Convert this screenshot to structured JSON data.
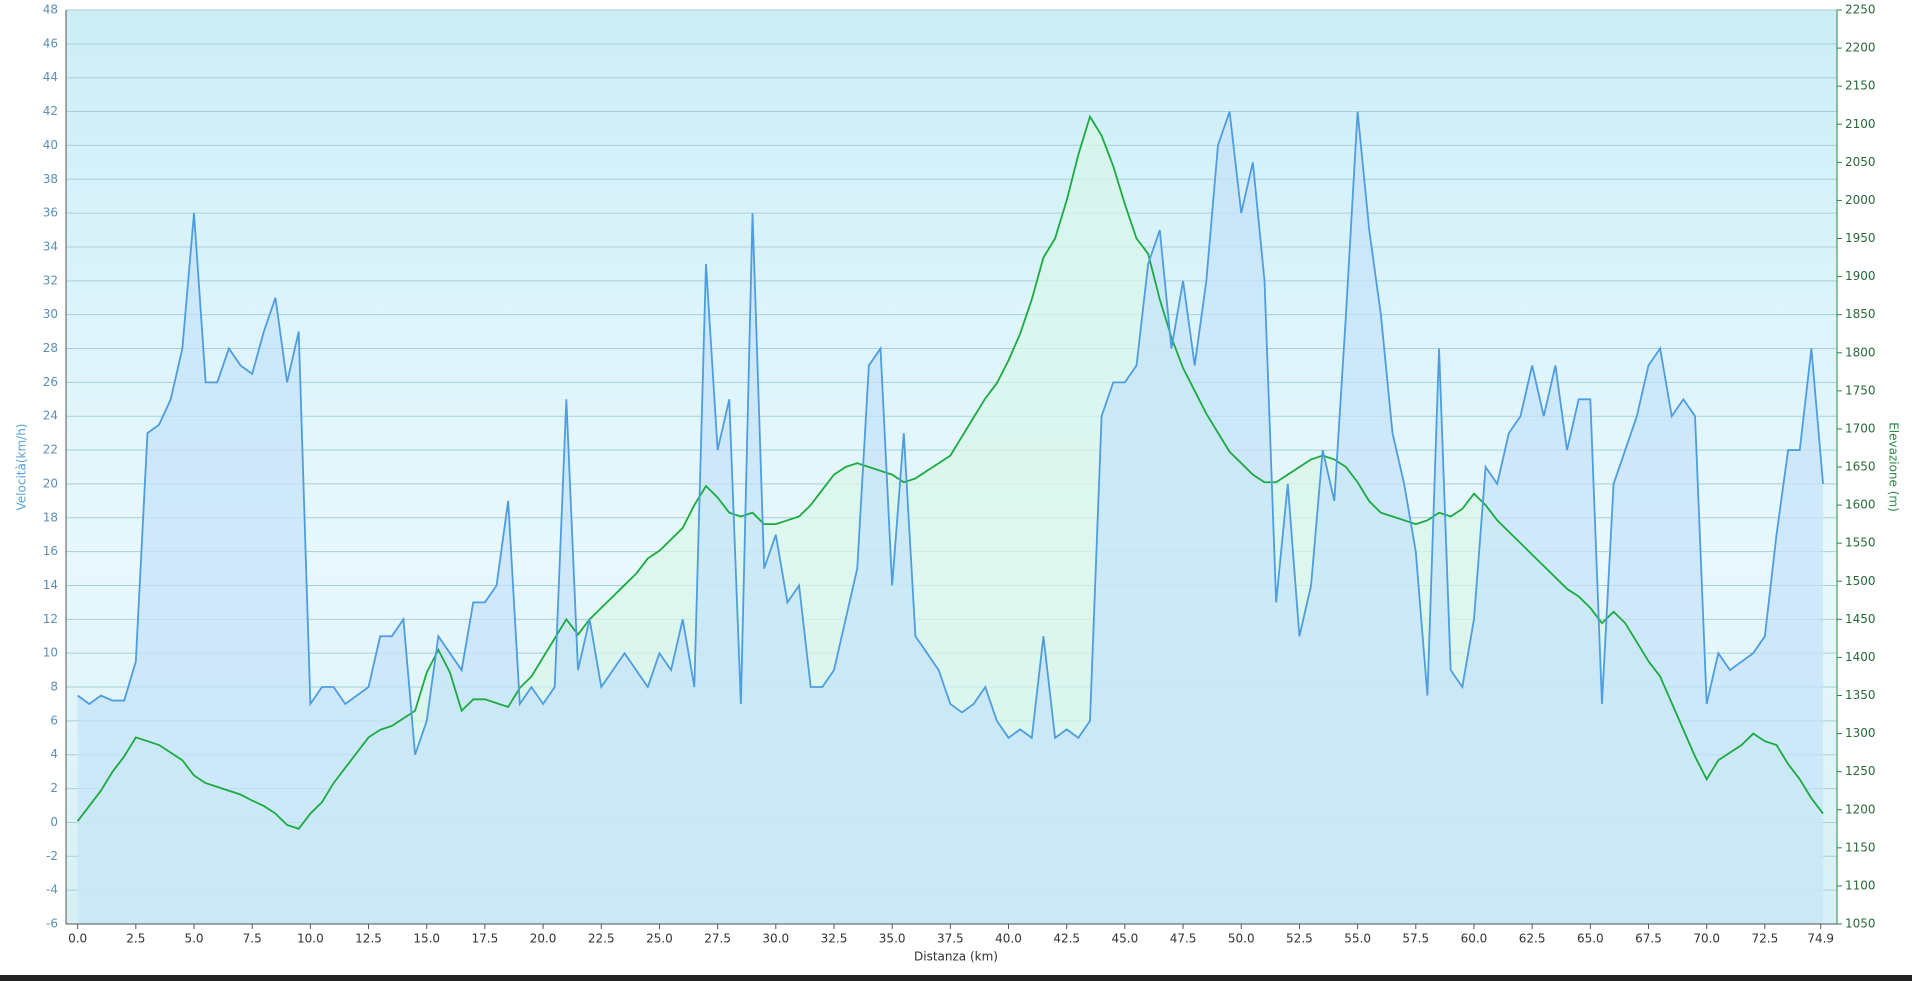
{
  "chart_data": {
    "type": "line",
    "xlabel": "Distanza  (km)",
    "ylabel": "Velocità(km/h)",
    "y2label": "Elevazione (m)",
    "x": [
      0,
      0.5,
      1,
      1.5,
      2,
      2.5,
      3,
      3.5,
      4,
      4.5,
      5,
      5.5,
      6,
      6.5,
      7,
      7.5,
      8,
      8.5,
      9,
      9.5,
      10,
      10.5,
      11,
      11.5,
      12,
      12.5,
      13,
      13.5,
      14,
      14.5,
      15,
      15.5,
      16,
      16.5,
      17,
      17.5,
      18,
      18.5,
      19,
      19.5,
      20,
      20.5,
      21,
      21.5,
      22,
      22.5,
      23,
      23.5,
      24,
      24.5,
      25,
      25.5,
      26,
      26.5,
      27,
      27.5,
      28,
      28.5,
      29,
      29.5,
      30,
      30.5,
      31,
      31.5,
      32,
      32.5,
      33,
      33.5,
      34,
      34.5,
      35,
      35.5,
      36,
      36.5,
      37,
      37.5,
      38,
      38.5,
      39,
      39.5,
      40,
      40.5,
      41,
      41.5,
      42,
      42.5,
      43,
      43.5,
      44,
      44.5,
      45,
      45.5,
      46,
      46.5,
      47,
      47.5,
      48,
      48.5,
      49,
      49.5,
      50,
      50.5,
      51,
      51.5,
      52,
      52.5,
      53,
      53.5,
      54,
      54.5,
      55,
      55.5,
      56,
      56.5,
      57,
      57.5,
      58,
      58.5,
      59,
      59.5,
      60,
      60.5,
      61,
      61.5,
      62,
      62.5,
      63,
      63.5,
      64,
      64.5,
      65,
      65.5,
      66,
      66.5,
      67,
      67.5,
      68,
      68.5,
      69,
      69.5,
      70,
      70.5,
      71,
      71.5,
      72,
      72.5,
      73,
      73.5,
      74,
      74.5,
      75
    ],
    "series": [
      {
        "color": "#1aab40",
        "fill": "#d8f7e8",
        "axis": "y2",
        "values": [
          1185,
          1205,
          1225,
          1250,
          1270,
          1295,
          1290,
          1285,
          1275,
          1265,
          1245,
          1235,
          1230,
          1225,
          1220,
          1212,
          1205,
          1195,
          1180,
          1175,
          1195,
          1210,
          1235,
          1255,
          1275,
          1295,
          1305,
          1310,
          1320,
          1330,
          1380,
          1410,
          1380,
          1330,
          1345,
          1345,
          1340,
          1335,
          1360,
          1375,
          1400,
          1425,
          1450,
          1430,
          1450,
          1465,
          1480,
          1495,
          1510,
          1530,
          1540,
          1555,
          1570,
          1600,
          1625,
          1610,
          1590,
          1585,
          1590,
          1575,
          1575,
          1580,
          1585,
          1600,
          1620,
          1640,
          1650,
          1655,
          1650,
          1645,
          1640,
          1630,
          1635,
          1645,
          1655,
          1665,
          1690,
          1715,
          1740,
          1760,
          1790,
          1825,
          1870,
          1925,
          1950,
          2000,
          2060,
          2110,
          2085,
          2045,
          1995,
          1950,
          1930,
          1870,
          1820,
          1780,
          1750,
          1720,
          1695,
          1670,
          1655,
          1640,
          1630,
          1630,
          1640,
          1650,
          1660,
          1665,
          1660,
          1650,
          1630,
          1605,
          1590,
          1585,
          1580,
          1575,
          1580,
          1590,
          1585,
          1595,
          1615,
          1600,
          1580,
          1565,
          1550,
          1535,
          1520,
          1505,
          1490,
          1480,
          1465,
          1445,
          1460,
          1445,
          1420,
          1395,
          1375,
          1340,
          1305,
          1270,
          1240,
          1265,
          1275,
          1285,
          1300,
          1290,
          1285,
          1260,
          1240,
          1215,
          1195
        ]
      },
      {
        "color": "#4d9de0",
        "fill": "#c4e2fa",
        "values": [
          7.5,
          7,
          7.5,
          7.2,
          7.2,
          9.5,
          23,
          23.5,
          25,
          28,
          36,
          26,
          26,
          28,
          27,
          26.5,
          29,
          31,
          26,
          29,
          7,
          8,
          8,
          7,
          7.5,
          8,
          11,
          11,
          12,
          4,
          6,
          11,
          10,
          9,
          13,
          13,
          14,
          19,
          7,
          8,
          7,
          8,
          25,
          9,
          12,
          8,
          9,
          10,
          9,
          8,
          10,
          9,
          12,
          8,
          33,
          22,
          25,
          7,
          36,
          15,
          17,
          13,
          14,
          8,
          8,
          9,
          12,
          15,
          27,
          28,
          14,
          23,
          11,
          10,
          9,
          7,
          6.5,
          7,
          8,
          6,
          5,
          5.5,
          5,
          11,
          5,
          5.5,
          5,
          6,
          24,
          26,
          26,
          27,
          33,
          35,
          28,
          32,
          27,
          32,
          40,
          42,
          36,
          39,
          32,
          13,
          20,
          11,
          14,
          22,
          19,
          30,
          42,
          35,
          30,
          23,
          20,
          16,
          7.5,
          28,
          9,
          8,
          12,
          21,
          20,
          23,
          24,
          27,
          24,
          27,
          22,
          25,
          25,
          7,
          20,
          22,
          24,
          27,
          28,
          24,
          25,
          24,
          7,
          10,
          9,
          9.5,
          10,
          11,
          17,
          22,
          22,
          28,
          20
        ]
      }
    ],
    "xlim": [
      -0.5,
      75.6
    ],
    "ylim": [
      -6,
      48
    ],
    "y2lim": [
      1050,
      2250
    ],
    "xticks": [
      {
        "value": 0,
        "label": "0.0"
      },
      2.5,
      {
        "value": 5,
        "label": "5.0"
      },
      7.5,
      {
        "value": 10,
        "label": "10.0"
      },
      12.5,
      {
        "value": 15,
        "label": "15.0"
      },
      17.5,
      {
        "value": 20,
        "label": "20.0"
      },
      22.5,
      {
        "value": 25,
        "label": "25.0"
      },
      27.5,
      {
        "value": 30,
        "label": "30.0"
      },
      32.5,
      {
        "value": 35,
        "label": "35.0"
      },
      37.5,
      {
        "value": 40,
        "label": "40.0"
      },
      42.5,
      {
        "value": 45,
        "label": "45.0"
      },
      47.5,
      {
        "value": 50,
        "label": "50.0"
      },
      52.5,
      {
        "value": 55,
        "label": "55.0"
      },
      57.5,
      {
        "value": 60,
        "label": "60.0"
      },
      62.5,
      {
        "value": 65,
        "label": "65.0"
      },
      67.5,
      {
        "value": 70,
        "label": "70.0"
      },
      72.5,
      74.9
    ],
    "yticks": [
      -6,
      -4,
      -2,
      0,
      2,
      4,
      6,
      8,
      10,
      12,
      14,
      16,
      18,
      20,
      22,
      24,
      26,
      28,
      30,
      32,
      34,
      36,
      38,
      40,
      42,
      44,
      46,
      48
    ],
    "y2ticks": [
      1050,
      1100,
      1150,
      1200,
      1250,
      1300,
      1350,
      1400,
      1450,
      1500,
      1550,
      1600,
      1650,
      1700,
      1750,
      1800,
      1850,
      1900,
      1950,
      2000,
      2050,
      2100,
      2150,
      2200,
      2250
    ],
    "grid": true
  }
}
